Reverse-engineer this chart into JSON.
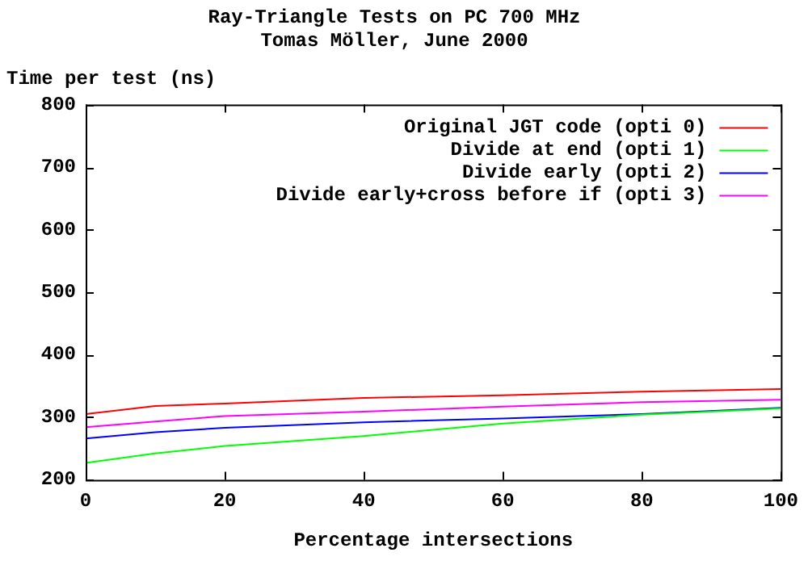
{
  "chart_data": {
    "type": "line",
    "title": "Ray-Triangle Tests on PC 700 MHz",
    "subtitle": "Tomas Möller, June 2000",
    "xlabel": "Percentage intersections",
    "ylabel": "Time per test (ns)",
    "x": [
      0,
      10,
      20,
      40,
      60,
      80,
      100
    ],
    "series": [
      {
        "name": "Original JGT code (opti 0)",
        "color": "#ff0000",
        "values": [
          305,
          318,
          322,
          331,
          335,
          341,
          345
        ]
      },
      {
        "name": "Divide at end (opti 1)",
        "color": "#00ff00",
        "values": [
          227,
          242,
          254,
          270,
          290,
          304,
          314
        ]
      },
      {
        "name": "Divide early (opti 2)",
        "color": "#0000ff",
        "values": [
          266,
          276,
          283,
          292,
          298,
          305,
          315
        ]
      },
      {
        "name": "Divide early+cross before if (opti 3)",
        "color": "#ff00ff",
        "values": [
          284,
          293,
          302,
          309,
          317,
          324,
          328
        ]
      }
    ],
    "xlim": [
      0,
      100
    ],
    "xticks": [
      0,
      20,
      40,
      60,
      80,
      100
    ],
    "ylim": [
      200,
      800
    ],
    "yticks": [
      200,
      300,
      400,
      500,
      600,
      700,
      800
    ],
    "grid": false,
    "legend": "top right",
    "marker": "none",
    "line_style": "solid"
  }
}
